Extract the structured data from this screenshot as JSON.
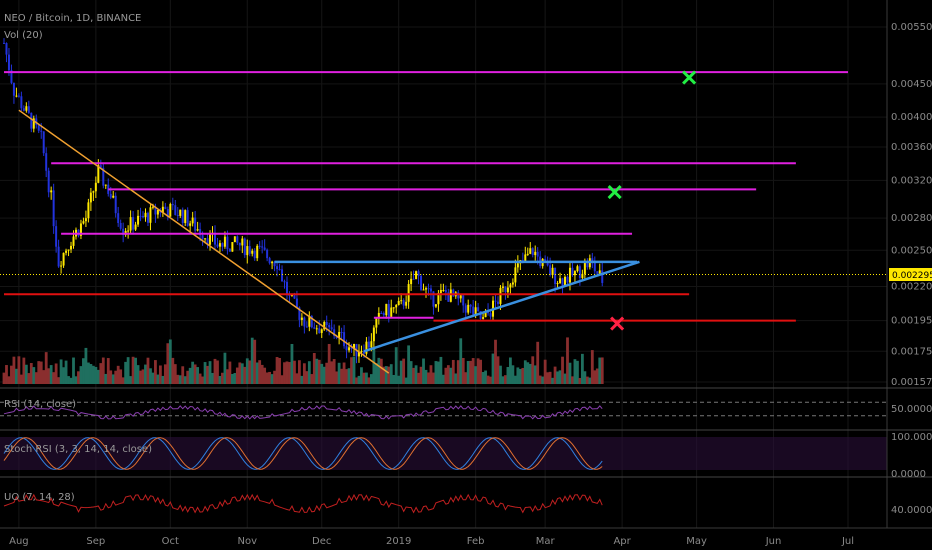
{
  "header": {
    "symbol_line": "NEO / Bitcoin, 1D, BINANCE",
    "volume_line": "Vol (20)"
  },
  "indicators": {
    "rsi": "RSI (14, close)",
    "stoch": "Stoch RSI (3, 3, 14, 14, close)",
    "uo": "UO (7, 14, 28)"
  },
  "last_price": "0.002295",
  "colors": {
    "up": "#ffe800",
    "down": "#2233dd",
    "resistance": "#e020e0",
    "support_red": "#e01010",
    "trend_orange": "#f0a030",
    "triangle_blue": "#3a90e0",
    "vol_up": "#1f6f5f",
    "vol_down": "#8a2e2e",
    "target_hit": "#22ee44",
    "invalidated": "#ff2244",
    "osc_line": "#8a3fb0",
    "uo_line": "#c02020",
    "stoch_k": "#3080e0",
    "stoch_d": "#e07030"
  },
  "chart_data": {
    "type": "candlestick",
    "title": "NEO / Bitcoin, 1D, BINANCE",
    "y_axis": {
      "scale": "log",
      "range": [
        0.00157,
        0.0058
      ],
      "ticks": [
        "0.005500",
        "0.004500",
        "0.004000",
        "0.003600",
        "0.003200",
        "0.002800",
        "0.002500",
        "0.002295",
        "0.002200",
        "0.001950",
        "0.001750",
        "0.001570"
      ]
    },
    "x_axis": {
      "ticks": [
        "Aug",
        "Sep",
        "Oct",
        "Nov",
        "Dec",
        "2019",
        "Feb",
        "Mar",
        "Apr",
        "May",
        "Jun",
        "Jul"
      ]
    },
    "price_path": [
      [
        "2018-07-26",
        0.0052
      ],
      [
        "2018-07-30",
        0.0044
      ],
      [
        "2018-08-05",
        0.004
      ],
      [
        "2018-08-10",
        0.0037
      ],
      [
        "2018-08-14",
        0.003
      ],
      [
        "2018-08-17",
        0.0024
      ],
      [
        "2018-08-22",
        0.0026
      ],
      [
        "2018-08-28",
        0.0028
      ],
      [
        "2018-09-02",
        0.0033
      ],
      [
        "2018-09-06",
        0.0031
      ],
      [
        "2018-09-12",
        0.0027
      ],
      [
        "2018-09-20",
        0.0028
      ],
      [
        "2018-09-28",
        0.0029
      ],
      [
        "2018-10-05",
        0.00285
      ],
      [
        "2018-10-12",
        0.0027
      ],
      [
        "2018-10-20",
        0.00255
      ],
      [
        "2018-10-28",
        0.00255
      ],
      [
        "2018-11-05",
        0.0025
      ],
      [
        "2018-11-13",
        0.0024
      ],
      [
        "2018-11-18",
        0.0021
      ],
      [
        "2018-11-24",
        0.00195
      ],
      [
        "2018-12-01",
        0.0019
      ],
      [
        "2018-12-08",
        0.00185
      ],
      [
        "2018-12-14",
        0.00175
      ],
      [
        "2018-12-20",
        0.0018
      ],
      [
        "2018-12-25",
        0.002
      ],
      [
        "2019-01-02",
        0.00205
      ],
      [
        "2019-01-08",
        0.0023
      ],
      [
        "2019-01-14",
        0.0021
      ],
      [
        "2019-01-20",
        0.00215
      ],
      [
        "2019-01-28",
        0.00205
      ],
      [
        "2019-02-04",
        0.00195
      ],
      [
        "2019-02-10",
        0.0021
      ],
      [
        "2019-02-16",
        0.0023
      ],
      [
        "2019-02-24",
        0.0025
      ],
      [
        "2019-03-01",
        0.00235
      ],
      [
        "2019-03-07",
        0.00225
      ],
      [
        "2019-03-13",
        0.0023
      ],
      [
        "2019-03-19",
        0.0024
      ],
      [
        "2019-03-24",
        0.00225
      ]
    ],
    "horizontal_levels": [
      {
        "price": 0.00469,
        "color": "resistance",
        "from": "2018-07-26",
        "to": "2019-07-01"
      },
      {
        "price": 0.0034,
        "color": "resistance",
        "from": "2018-08-14",
        "to": "2019-06-10"
      },
      {
        "price": 0.0031,
        "color": "resistance",
        "from": "2018-09-06",
        "to": "2019-05-25"
      },
      {
        "price": 0.00265,
        "color": "resistance",
        "from": "2018-08-18",
        "to": "2019-04-05"
      },
      {
        "price": 0.0024,
        "color": "triangle_blue",
        "from": "2018-11-12",
        "to": "2019-04-07"
      },
      {
        "price": 0.00214,
        "color": "support_red",
        "from": "2018-07-26",
        "to": "2019-04-28"
      },
      {
        "price": 0.00197,
        "color": "resistance",
        "from": "2018-12-22",
        "to": "2019-01-15"
      },
      {
        "price": 0.00195,
        "color": "support_red",
        "from": "2019-01-15",
        "to": "2019-06-10"
      }
    ],
    "trend_lines": [
      {
        "color": "trend_orange",
        "points": [
          [
            "2018-08-01",
            0.0041
          ],
          [
            "2018-12-28",
            0.00162
          ]
        ]
      },
      {
        "color": "triangle_blue",
        "points": [
          [
            "2018-12-18",
            0.00175
          ],
          [
            "2019-04-08",
            0.0024
          ]
        ]
      }
    ],
    "markers": [
      {
        "type": "x",
        "color": "target_hit",
        "date": "2019-04-28",
        "price": 0.0046
      },
      {
        "type": "x",
        "color": "target_hit",
        "date": "2019-03-29",
        "price": 0.00307
      },
      {
        "type": "x",
        "color": "invalidated",
        "date": "2019-03-30",
        "price": 0.00193
      }
    ],
    "panels": {
      "rsi": {
        "label": "RSI (14, close)",
        "ticks": [
          "50.0000"
        ],
        "band": [
          30,
          70
        ],
        "range": [
          0,
          100
        ]
      },
      "stoch": {
        "label": "Stoch RSI (3, 3, 14, 14, close)",
        "ticks": [
          "100.0000",
          "0.0000"
        ],
        "band": [
          20,
          80
        ],
        "range": [
          0,
          100
        ]
      },
      "uo": {
        "label": "UO (7, 14, 28)",
        "ticks": [
          "40.0000"
        ],
        "range": [
          25,
          75
        ]
      }
    }
  }
}
